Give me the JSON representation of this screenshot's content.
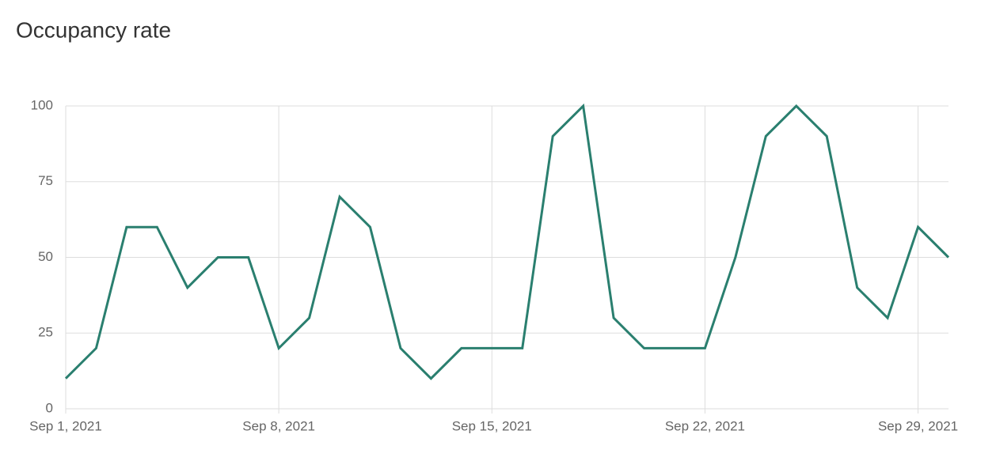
{
  "chart_data": {
    "type": "line",
    "title": "Occupancy rate",
    "x": [
      "2021-09-01",
      "2021-09-02",
      "2021-09-03",
      "2021-09-04",
      "2021-09-05",
      "2021-09-06",
      "2021-09-07",
      "2021-09-08",
      "2021-09-09",
      "2021-09-10",
      "2021-09-11",
      "2021-09-12",
      "2021-09-13",
      "2021-09-14",
      "2021-09-15",
      "2021-09-16",
      "2021-09-17",
      "2021-09-18",
      "2021-09-19",
      "2021-09-20",
      "2021-09-21",
      "2021-09-22",
      "2021-09-23",
      "2021-09-24",
      "2021-09-25",
      "2021-09-26",
      "2021-09-27",
      "2021-09-28",
      "2021-09-29",
      "2021-09-30"
    ],
    "series": [
      {
        "color": "#2a7f6f",
        "values": [
          10,
          20,
          60,
          60,
          40,
          50,
          50,
          20,
          30,
          70,
          60,
          20,
          10,
          20,
          20,
          20,
          90,
          100,
          30,
          20,
          20,
          20,
          50,
          90,
          100,
          90,
          40,
          30,
          60,
          50
        ]
      }
    ],
    "xlim": [
      "2021-09-01",
      "2021-09-30"
    ],
    "xticks": [
      {
        "value": "2021-09-01",
        "label": "Sep 1, 2021"
      },
      {
        "value": "2021-09-08",
        "label": "Sep 8, 2021"
      },
      {
        "value": "2021-09-15",
        "label": "Sep 15, 2021"
      },
      {
        "value": "2021-09-22",
        "label": "Sep 22, 2021"
      },
      {
        "value": "2021-09-29",
        "label": "Sep 29, 2021"
      }
    ],
    "ylim": [
      0,
      100
    ],
    "yticks": [
      0,
      25,
      50,
      75,
      100
    ],
    "grid": true
  }
}
